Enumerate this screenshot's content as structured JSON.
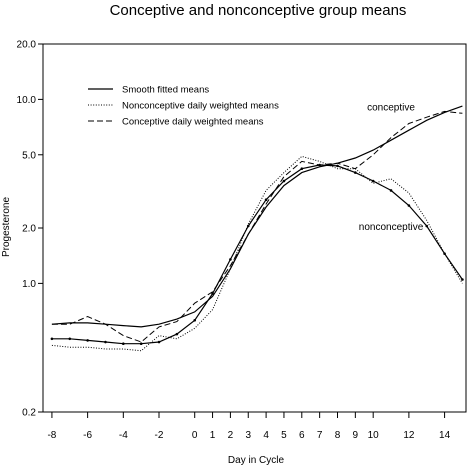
{
  "chart_data": {
    "type": "line",
    "title": "Conceptive and nonconceptive group means",
    "xlabel": "Day in Cycle",
    "ylabel": "Progesterone",
    "x_scale": "linear",
    "y_scale": "log",
    "xlim": [
      -8.5,
      15.2
    ],
    "ylim": [
      0.2,
      20.0
    ],
    "x_ticks": [
      -8,
      -6,
      -4,
      -2,
      0,
      1,
      2,
      3,
      4,
      5,
      6,
      7,
      8,
      9,
      10,
      12,
      14
    ],
    "y_ticks": [
      0.2,
      1.0,
      2.0,
      5.0,
      10.0,
      20.0
    ],
    "y_tick_labels": [
      "0.2",
      "1.0",
      "2.0",
      "5.0",
      "10.0",
      "20.0"
    ],
    "legend": {
      "placement": "top-left",
      "entries": [
        {
          "label": "Smooth fitted means",
          "style": "solid"
        },
        {
          "label": "Nonconceptive daily weighted means",
          "style": "dotted"
        },
        {
          "label": "Conceptive daily weighted means",
          "style": "dashed"
        }
      ]
    },
    "annotations": [
      {
        "text": "conceptive",
        "x": 11.0,
        "y": 8.7
      },
      {
        "text": "nonconceptive",
        "x": 11.0,
        "y": 1.95
      }
    ],
    "series": [
      {
        "name": "Smooth fitted means",
        "style": "solid",
        "group": "conceptive",
        "x": [
          -8,
          -7,
          -6,
          -5,
          -4,
          -3,
          -2,
          -1,
          0,
          1,
          2,
          3,
          4,
          5,
          6,
          7,
          8,
          9,
          10,
          11,
          12,
          13,
          14,
          15
        ],
        "values": [
          0.6,
          0.61,
          0.61,
          0.6,
          0.59,
          0.58,
          0.6,
          0.64,
          0.7,
          0.85,
          1.2,
          1.85,
          2.6,
          3.4,
          4.0,
          4.3,
          4.5,
          4.8,
          5.3,
          6.0,
          6.8,
          7.7,
          8.5,
          9.2
        ]
      },
      {
        "name": "Smooth fitted means",
        "style": "solid",
        "group": "nonconceptive",
        "markers": true,
        "x": [
          -8,
          -7,
          -6,
          -5,
          -4,
          -3,
          -2,
          -1,
          0,
          1,
          2,
          3,
          4,
          5,
          6,
          7,
          8,
          9,
          10,
          11,
          12,
          13,
          14,
          15
        ],
        "values": [
          0.5,
          0.5,
          0.49,
          0.48,
          0.47,
          0.47,
          0.48,
          0.53,
          0.63,
          0.88,
          1.35,
          2.05,
          2.85,
          3.6,
          4.2,
          4.4,
          4.35,
          4.0,
          3.6,
          3.2,
          2.65,
          2.05,
          1.45,
          1.05
        ]
      },
      {
        "name": "Nonconceptive daily weighted means",
        "style": "dotted",
        "x": [
          -8,
          -7,
          -6,
          -5,
          -4,
          -3,
          -2,
          -1,
          0,
          1,
          2,
          3,
          4,
          5,
          6,
          7,
          8,
          9,
          10,
          11,
          12,
          13,
          14,
          15
        ],
        "values": [
          0.46,
          0.45,
          0.45,
          0.44,
          0.44,
          0.43,
          0.52,
          0.5,
          0.57,
          0.72,
          1.2,
          2.1,
          3.2,
          4.0,
          4.9,
          4.6,
          4.2,
          4.2,
          3.5,
          3.7,
          3.1,
          2.2,
          1.45,
          1.0
        ]
      },
      {
        "name": "Conceptive daily weighted means",
        "style": "dashed",
        "x": [
          -8,
          -7,
          -6,
          -5,
          -4,
          -3,
          -2,
          -1,
          0,
          1,
          2,
          3,
          4,
          5,
          6,
          7,
          8,
          9,
          10,
          11,
          12,
          13,
          14,
          15
        ],
        "values": [
          0.6,
          0.6,
          0.66,
          0.6,
          0.52,
          0.48,
          0.58,
          0.62,
          0.78,
          0.9,
          1.25,
          1.85,
          2.7,
          3.8,
          4.6,
          4.4,
          4.5,
          4.2,
          5.0,
          6.2,
          7.4,
          8.0,
          8.6,
          8.4
        ]
      }
    ]
  }
}
